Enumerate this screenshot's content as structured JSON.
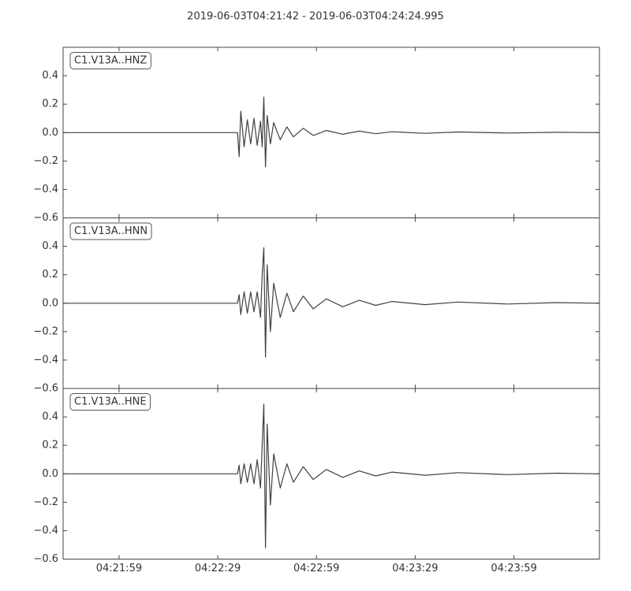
{
  "chart_data": {
    "type": "line",
    "title": "2019-06-03T04:21:42  -  2019-06-03T04:24:24.995",
    "color": "#404040",
    "xlim": [
      0,
      162.995
    ],
    "xticks": [
      {
        "value": 17,
        "label": "04:21:59"
      },
      {
        "value": 47,
        "label": "04:22:29"
      },
      {
        "value": 77,
        "label": "04:22:59"
      },
      {
        "value": 107,
        "label": "04:23:29"
      },
      {
        "value": 137,
        "label": "04:23:59"
      }
    ],
    "ylim": [
      -0.6,
      0.6
    ],
    "yticks": [
      {
        "value": -0.6,
        "label": "−0.6"
      },
      {
        "value": -0.4,
        "label": "−0.4"
      },
      {
        "value": -0.2,
        "label": "−0.2"
      },
      {
        "value": 0,
        "label": "0.0"
      },
      0.2,
      0.4
    ],
    "x": [
      0,
      53,
      53.5,
      54,
      55,
      56,
      57,
      58,
      59,
      60,
      60.5,
      61,
      61.5,
      62,
      63,
      64,
      66,
      68,
      70,
      73,
      76,
      80,
      85,
      90,
      95,
      100,
      110,
      120,
      135,
      150,
      163
    ],
    "panels": [
      {
        "label": "C1.V13A..HNZ",
        "values": [
          0,
          0,
          -0.17,
          0.15,
          -0.1,
          0.09,
          -0.08,
          0.1,
          -0.09,
          0.08,
          -0.1,
          0.25,
          -0.24,
          0.12,
          -0.08,
          0.07,
          -0.05,
          0.04,
          -0.03,
          0.03,
          -0.02,
          0.015,
          -0.012,
          0.01,
          -0.008,
          0.006,
          -0.005,
          0.004,
          -0.003,
          0.002,
          0
        ]
      },
      {
        "label": "C1.V13A..HNN",
        "values": [
          0,
          0,
          0.06,
          -0.08,
          0.08,
          -0.07,
          0.08,
          -0.06,
          0.08,
          -0.1,
          0.2,
          0.39,
          -0.38,
          0.27,
          -0.2,
          0.14,
          -0.1,
          0.07,
          -0.06,
          0.05,
          -0.04,
          0.03,
          -0.025,
          0.02,
          -0.015,
          0.012,
          -0.01,
          0.008,
          -0.006,
          0.004,
          0
        ]
      },
      {
        "label": "C1.V13A..HNE",
        "values": [
          0,
          0,
          0.06,
          -0.07,
          0.07,
          -0.06,
          0.07,
          -0.07,
          0.1,
          -0.1,
          0.2,
          0.49,
          -0.52,
          0.35,
          -0.22,
          0.14,
          -0.1,
          0.07,
          -0.06,
          0.05,
          -0.04,
          0.03,
          -0.025,
          0.02,
          -0.015,
          0.012,
          -0.01,
          0.008,
          -0.006,
          0.004,
          0
        ]
      }
    ]
  }
}
